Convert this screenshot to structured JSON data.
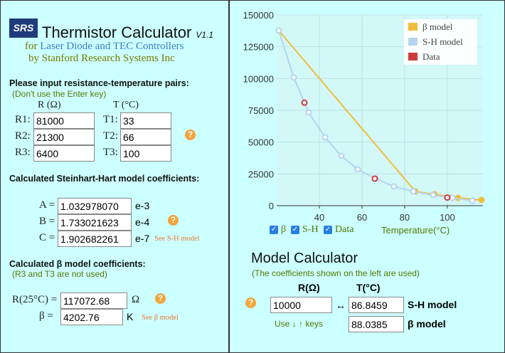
{
  "header": {
    "logo": "SRS",
    "title": "Thermistor Calculator",
    "version": "V1.1",
    "for": "for",
    "link": "Laser Diode and TEC Controllers",
    "by": "by Stanford Research Systems Inc"
  },
  "inputs": {
    "heading": "Please input resistance-temperature pairs:",
    "note": "(Don't use the Enter key)",
    "r_header": "R (Ω)",
    "t_header": "T (°C)",
    "help": "?",
    "rows": [
      {
        "r_label": "R1:",
        "r": "81000",
        "t_label": "T1:",
        "t": "33"
      },
      {
        "r_label": "R2:",
        "r": "21300",
        "t_label": "T2:",
        "t": "66"
      },
      {
        "r_label": "R3:",
        "r": "6400",
        "t_label": "T3:",
        "t": "100"
      }
    ]
  },
  "steinhart": {
    "heading": "Calculated Steinhart-Hart model coefficients:",
    "help": "?",
    "link": "See S-H model",
    "rows": [
      {
        "label": "A =",
        "value": "1.032978070",
        "exp": "e-3"
      },
      {
        "label": "B =",
        "value": "1.733021623",
        "exp": "e-4"
      },
      {
        "label": "C =",
        "value": "1.902682261",
        "exp": "e-7"
      }
    ]
  },
  "beta": {
    "heading": "Calculated β model coefficients:",
    "note": "(R3 and T3 are not used)",
    "help": "?",
    "link": "See β model",
    "r25_label": "R(25°C) =",
    "r25": "117072.68",
    "r25_unit": "Ω",
    "b_label": "β =",
    "b": "4202.76",
    "b_unit": "K"
  },
  "calculator": {
    "title": "Model Calculator",
    "note": "(The coefficients shown on the left are used)",
    "help": "?",
    "r_header": "R(Ω)",
    "t_header": "T(°C)",
    "r": "10000",
    "arrow": "↔",
    "sh_t": "86.8459",
    "sh_label": "S-H model",
    "beta_t": "88.0385",
    "beta_label": "β model",
    "hint": "Use ↓ ↑ keys"
  },
  "toggles": [
    "β",
    "S-H",
    "Data"
  ],
  "chart_data": {
    "type": "line",
    "x_label": "Temperature(°C)",
    "xlim": [
      20,
      116.7
    ],
    "xticks": [
      40,
      60,
      80,
      100
    ],
    "ylim": [
      0,
      150000
    ],
    "yticks": [
      0,
      25000,
      50000,
      75000,
      100000,
      125000,
      150000
    ],
    "grid": true,
    "legend": "top-right",
    "series": [
      {
        "name": "β model",
        "color": "#f2bd3a",
        "mode": "lines+markers",
        "x": [
          21,
          85,
          94,
          105,
          116
        ],
        "values": [
          137686,
          11194,
          8956,
          6157,
          4478
        ]
      },
      {
        "name": "S-H model",
        "color": "#b3d4ee",
        "mode": "lines+markers",
        "x": [
          21,
          28,
          35,
          42.7,
          50.3,
          58,
          66.3,
          75,
          84,
          93.3,
          102.3,
          111.7
        ],
        "values": [
          137686,
          100746,
          73321,
          53731,
          39179,
          28545,
          21269,
          15112,
          11194,
          8396,
          6157,
          3918
        ]
      },
      {
        "name": "Data",
        "color": "#cc3b3b",
        "mode": "markers",
        "x": [
          33,
          66,
          100
        ],
        "values": [
          81000,
          21300,
          6400
        ]
      }
    ]
  }
}
